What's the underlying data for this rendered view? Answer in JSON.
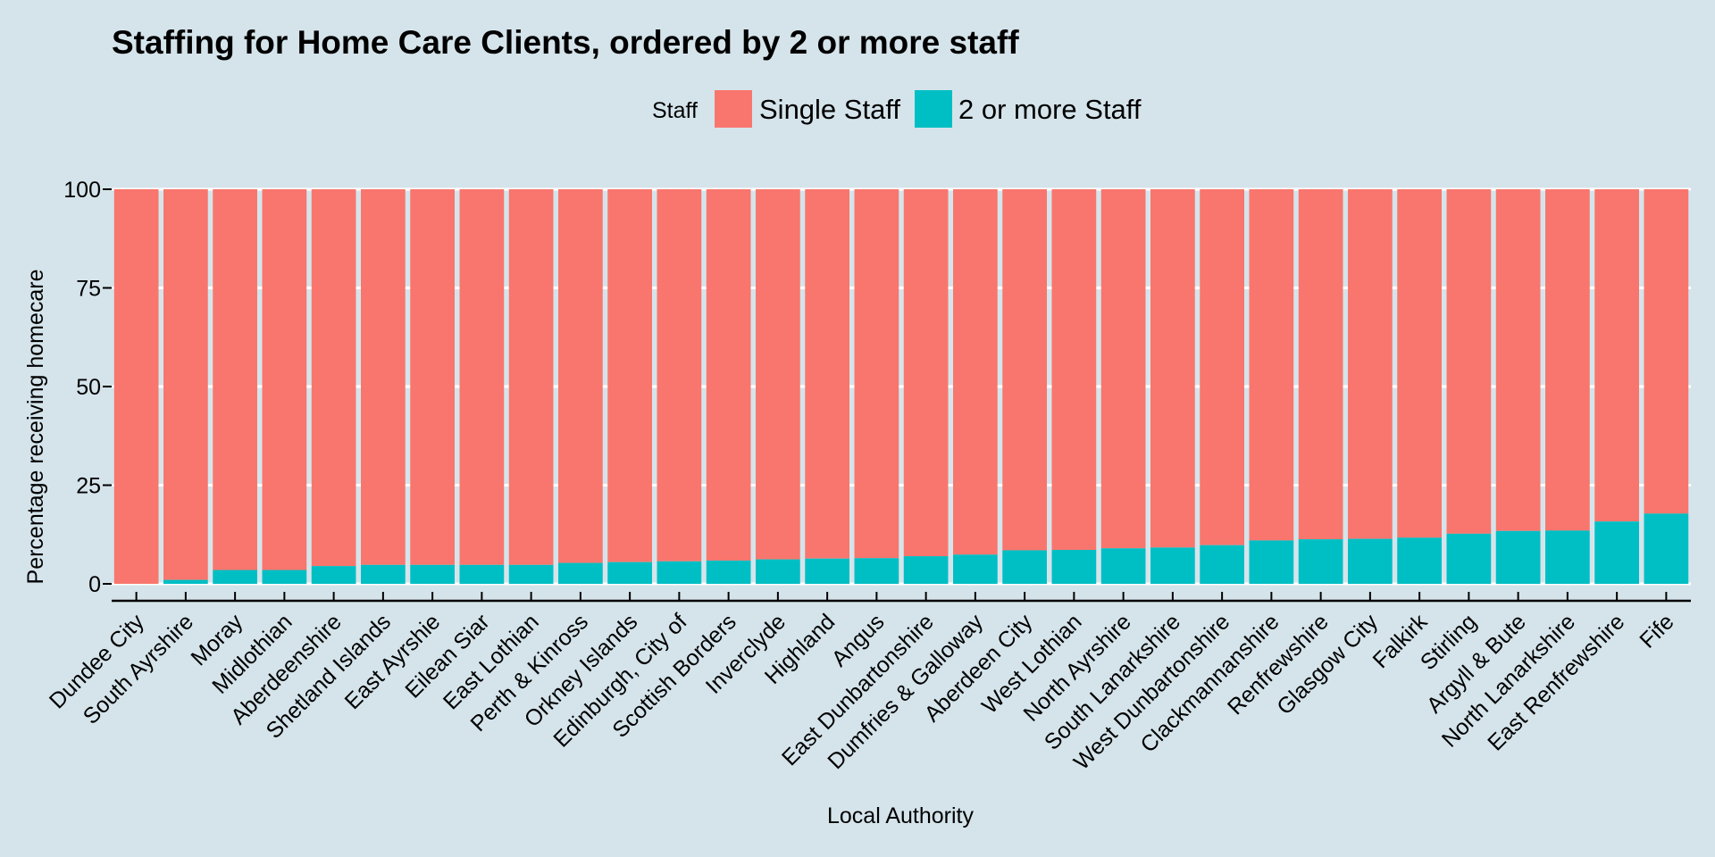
{
  "chart_data": {
    "type": "bar",
    "stacked": true,
    "title": "Staffing for Home Care Clients, ordered by 2 or more staff",
    "xlabel": "Local Authority",
    "ylabel": "Percentage receiving homecare",
    "ylim": [
      0,
      100
    ],
    "yticks": [
      "0",
      "25",
      "50",
      "75",
      "100"
    ],
    "grid": true,
    "legend": {
      "title": "Staff",
      "position": "top",
      "entries": [
        {
          "name": "Single Staff",
          "color": "#f8766d"
        },
        {
          "name": "2 or more Staff",
          "color": "#00bfc4"
        }
      ]
    },
    "categories": [
      "Dundee City",
      "South Ayrshire",
      "Moray",
      "Midlothian",
      "Aberdeenshire",
      "Shetland Islands",
      "East Ayrshie",
      "Eilean Siar",
      "East Lothian",
      "Perth & Kinross",
      "Orkney Islands",
      "Edinburgh, City of",
      "Scottish Borders",
      "Inverclyde",
      "Highland",
      "Angus",
      "East Dunbartonshire",
      "Dumfries & Galloway",
      "Aberdeen City",
      "West Lothian",
      "North Ayrshire",
      "South Lanarkshire",
      "West Dunbartonshire",
      "Clackmannanshire",
      "Renfrewshire",
      "Glasgow City",
      "Falkirk",
      "Stirling",
      "Argyll & Bute",
      "North Lanarkshire",
      "East Renfrewshire",
      "Fife"
    ],
    "series": [
      {
        "name": "Single Staff",
        "color": "#f8766d",
        "values": [
          100,
          99,
          96.5,
          96.5,
          95.5,
          95.2,
          95.2,
          95.2,
          95.2,
          94.7,
          94.5,
          94.3,
          94.1,
          93.8,
          93.6,
          93.5,
          93,
          92.6,
          91.5,
          91.4,
          91,
          90.8,
          90.2,
          89,
          88.7,
          88.6,
          88.3,
          87.3,
          86.6,
          86.5,
          84.2,
          82.2
        ]
      },
      {
        "name": "2 or more Staff",
        "color": "#00bfc4",
        "values": [
          0,
          1,
          3.5,
          3.5,
          4.5,
          4.8,
          4.8,
          4.8,
          4.8,
          5.3,
          5.5,
          5.7,
          5.9,
          6.2,
          6.4,
          6.5,
          7,
          7.4,
          8.5,
          8.6,
          9,
          9.2,
          9.8,
          11,
          11.3,
          11.4,
          11.7,
          12.7,
          13.4,
          13.5,
          15.8,
          17.8
        ]
      }
    ]
  }
}
